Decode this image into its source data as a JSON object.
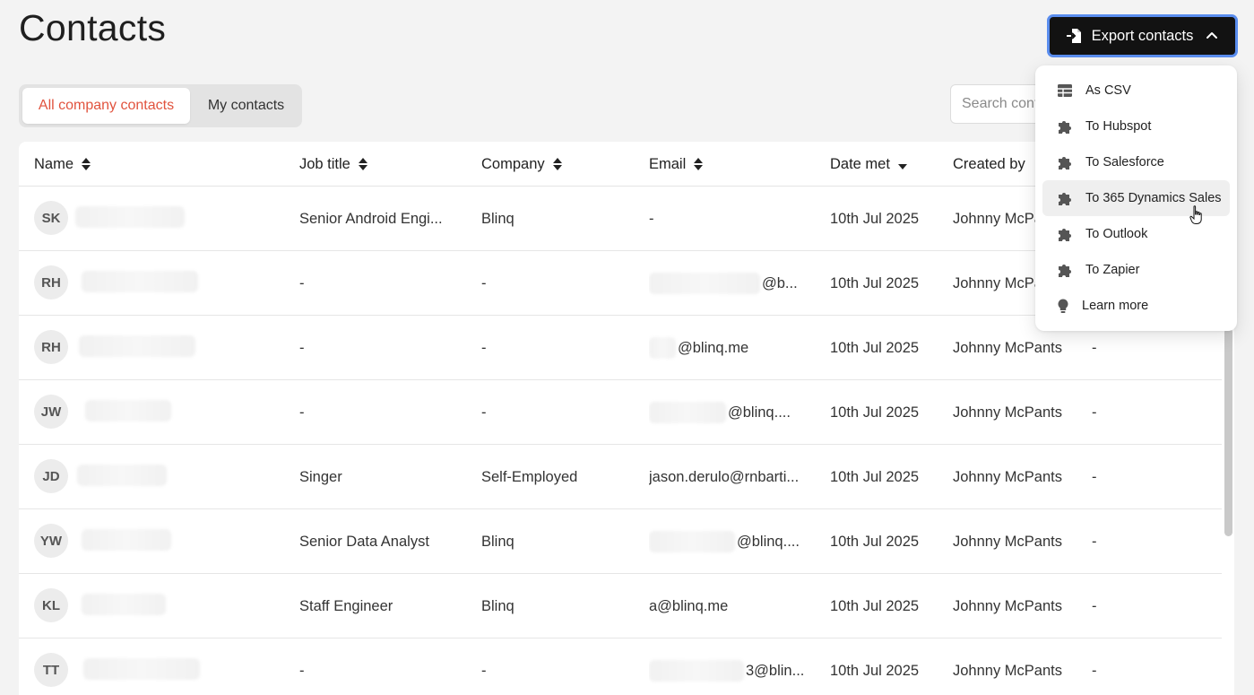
{
  "header": {
    "title": "Contacts",
    "export_label": "Export contacts"
  },
  "tabs": [
    {
      "label": "All company contacts",
      "active": true
    },
    {
      "label": "My contacts",
      "active": false
    }
  ],
  "search": {
    "placeholder": "Search contacts"
  },
  "table": {
    "columns": [
      "Name",
      "Job title",
      "Company",
      "Email",
      "Date met",
      "Created by"
    ],
    "rows": [
      {
        "initials": "SK",
        "job_title": "Senior Android Engi...",
        "company": "Blinq",
        "email": "-",
        "date_met": "10th Jul 2025",
        "created_by": "Johnny McPants",
        "extra": ""
      },
      {
        "initials": "RH",
        "job_title": "-",
        "company": "-",
        "email": "@b...",
        "date_met": "10th Jul 2025",
        "created_by": "Johnny McPa",
        "extra": ""
      },
      {
        "initials": "RH",
        "job_title": "-",
        "company": "-",
        "email": "@blinq.me",
        "date_met": "10th Jul 2025",
        "created_by": "Johnny McPants",
        "extra": "-"
      },
      {
        "initials": "JW",
        "job_title": "-",
        "company": "-",
        "email": "@blinq....",
        "date_met": "10th Jul 2025",
        "created_by": "Johnny McPants",
        "extra": "-"
      },
      {
        "initials": "JD",
        "job_title": "Singer",
        "company": "Self-Employed",
        "email": "jason.derulo@rnbarti...",
        "date_met": "10th Jul 2025",
        "created_by": "Johnny McPants",
        "extra": "-"
      },
      {
        "initials": "YW",
        "job_title": "Senior Data Analyst",
        "company": "Blinq",
        "email": "@blinq....",
        "date_met": "10th Jul 2025",
        "created_by": "Johnny McPants",
        "extra": "-"
      },
      {
        "initials": "KL",
        "job_title": "Staff Engineer",
        "company": "Blinq",
        "email": "a@blinq.me",
        "date_met": "10th Jul 2025",
        "created_by": "Johnny McPants",
        "extra": "-"
      },
      {
        "initials": "TT",
        "job_title": "-",
        "company": "-",
        "email": "3@blin...",
        "date_met": "10th Jul 2025",
        "created_by": "Johnny McPants",
        "extra": "-"
      }
    ]
  },
  "export_menu": {
    "items": [
      {
        "label": "As CSV",
        "icon": "table-icon"
      },
      {
        "label": "To Hubspot",
        "icon": "puzzle-icon"
      },
      {
        "label": "To Salesforce",
        "icon": "puzzle-icon"
      },
      {
        "label": "To 365 Dynamics Sales",
        "icon": "puzzle-icon",
        "hovered": true
      },
      {
        "label": "To Outlook",
        "icon": "puzzle-icon"
      },
      {
        "label": "To Zapier",
        "icon": "puzzle-icon"
      },
      {
        "label": "Learn more",
        "icon": "lightbulb-icon"
      }
    ]
  },
  "colors": {
    "accent": "#e1533e",
    "button_bg": "#121212",
    "focus_ring": "#5a8dee"
  }
}
